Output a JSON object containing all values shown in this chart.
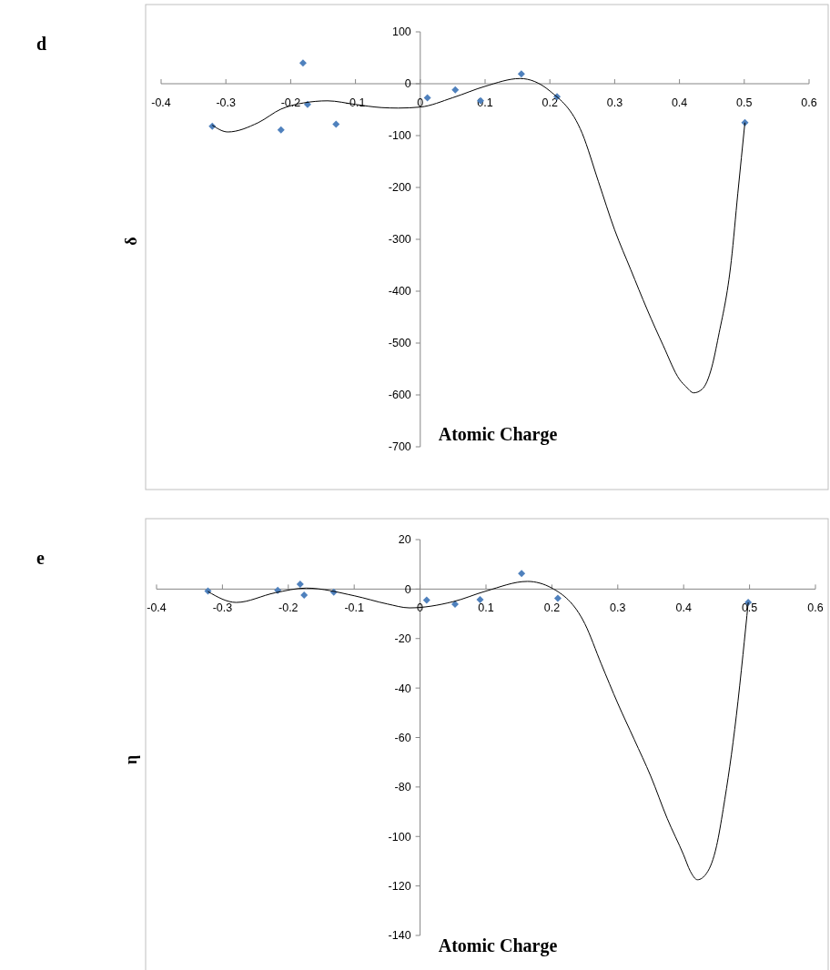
{
  "chart_data": [
    {
      "type": "scatter",
      "title": "d",
      "xlabel": "Atomic Charge",
      "ylabel": "δ",
      "xlim": [
        -0.4,
        0.6
      ],
      "ylim": [
        -700,
        100
      ],
      "xticks": [
        -0.4,
        -0.3,
        -0.2,
        -0.1,
        0,
        0.1,
        0.2,
        0.3,
        0.4,
        0.5,
        0.6
      ],
      "yticks": [
        -700,
        -600,
        -500,
        -400,
        -300,
        -200,
        -100,
        0,
        100
      ],
      "series": [
        {
          "color": "#4f81bd",
          "marker": "diamond",
          "x": [
            -0.321,
            -0.215,
            -0.181,
            -0.174,
            -0.13,
            0.011,
            0.054,
            0.093,
            0.156,
            0.211,
            0.501
          ],
          "values": [
            -82,
            -89,
            40,
            -40,
            -78,
            -27,
            -12,
            -33,
            19,
            -25,
            -75
          ]
        },
        {
          "type": "line",
          "color": "#000000",
          "line_style": "solid",
          "x": [
            -0.321,
            -0.297,
            -0.25,
            -0.215,
            -0.18,
            -0.143,
            -0.1,
            -0.06,
            -0.034,
            0,
            0.05,
            0.1,
            0.154,
            0.2,
            0.25,
            0.275,
            0.3,
            0.325,
            0.35,
            0.375,
            0.4,
            0.41,
            0.422,
            0.435,
            0.45,
            0.46,
            0.48,
            0.49,
            0.501
          ],
          "values": [
            -80,
            -93,
            -75,
            -49,
            -37,
            -33,
            -40,
            -46,
            -47,
            -45,
            -27,
            -5,
            10,
            -14,
            -96,
            -189,
            -282,
            -359,
            -435,
            -505,
            -570,
            -584,
            -596,
            -589,
            -546,
            -488,
            -341,
            -212,
            -75
          ]
        }
      ]
    },
    {
      "type": "scatter",
      "title": "e",
      "xlabel": "Atomic Charge",
      "ylabel": "η",
      "xlim": [
        -0.4,
        0.6
      ],
      "ylim": [
        -140,
        20
      ],
      "xticks": [
        -0.4,
        -0.3,
        -0.2,
        -0.1,
        0,
        0.1,
        0.2,
        0.3,
        0.4,
        0.5,
        0.6
      ],
      "yticks": [
        -140,
        -120,
        -100,
        -80,
        -60,
        -40,
        -20,
        0,
        20
      ],
      "series": [
        {
          "color": "#4f81bd",
          "marker": "diamond",
          "x": [
            -0.322,
            -0.216,
            -0.182,
            -0.176,
            -0.131,
            0.01,
            0.053,
            0.091,
            0.154,
            0.209,
            0.498
          ],
          "values": [
            -0.8,
            -0.5,
            2,
            -2.4,
            -1.2,
            -4.5,
            -6.1,
            -4.3,
            6.3,
            -3.7,
            -5.4
          ]
        },
        {
          "type": "line",
          "color": "#000000",
          "line_style": "solid",
          "x": [
            -0.322,
            -0.279,
            -0.22,
            -0.173,
            -0.1,
            -0.05,
            -0.016,
            0.05,
            0.1,
            0.163,
            0.2,
            0.25,
            0.275,
            0.3,
            0.325,
            0.35,
            0.375,
            0.4,
            0.41,
            0.421,
            0.435,
            0.45,
            0.46,
            0.48,
            0.49,
            0.498
          ],
          "values": [
            -1,
            -5.4,
            -1.5,
            0.4,
            -2.7,
            -6,
            -7.6,
            -5.1,
            -0.8,
            3.1,
            0.4,
            -14,
            -30.3,
            -46.2,
            -60.8,
            -75.6,
            -92.7,
            -107.5,
            -114,
            -117.5,
            -114.8,
            -103.8,
            -89,
            -51.1,
            -26.5,
            -5.4
          ]
        }
      ]
    }
  ]
}
